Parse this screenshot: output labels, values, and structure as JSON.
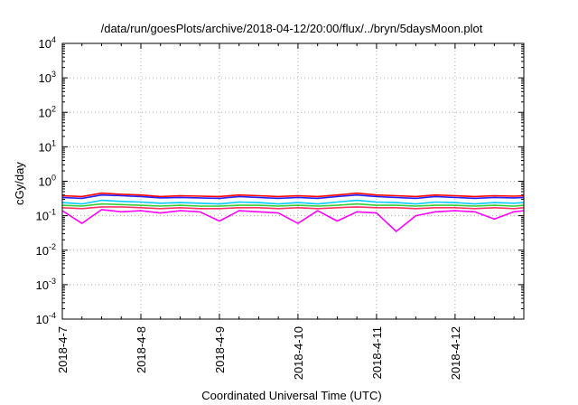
{
  "chart_data": {
    "type": "line",
    "title": "/data/run/goesPlots/archive/2018-04-12/20:00/flux/../bryn/5daysMoon.plot",
    "xlabel": "Coordinated Universal Time (UTC)",
    "ylabel": "cGy/day",
    "yscale": "log",
    "ylim": [
      0.0001,
      10000
    ],
    "xlim": [
      "2018-04-07",
      "2018-04-12T21:00"
    ],
    "grid": true,
    "x_ticks": [
      "2018-4-7",
      "2018-4-8",
      "2018-4-9",
      "2018-4-10",
      "2018-4-11",
      "2018-4-12"
    ],
    "y_ticks": [
      {
        "value": 0.0001,
        "base": "10",
        "exp": "-4"
      },
      {
        "value": 0.001,
        "base": "10",
        "exp": "-3"
      },
      {
        "value": 0.01,
        "base": "10",
        "exp": "-2"
      },
      {
        "value": 0.1,
        "base": "10",
        "exp": "-1"
      },
      {
        "value": 1,
        "base": "10",
        "exp": "0"
      },
      {
        "value": 10,
        "base": "10",
        "exp": "1"
      },
      {
        "value": 100,
        "base": "10",
        "exp": "2"
      },
      {
        "value": 1000,
        "base": "10",
        "exp": "3"
      },
      {
        "value": 10000,
        "base": "10",
        "exp": "4"
      }
    ],
    "x": [
      "2018-04-07",
      "2018-04-07T06:00",
      "2018-04-07T12:00",
      "2018-04-07T18:00",
      "2018-04-08",
      "2018-04-08T06:00",
      "2018-04-08T12:00",
      "2018-04-08T18:00",
      "2018-04-09",
      "2018-04-09T06:00",
      "2018-04-09T12:00",
      "2018-04-09T18:00",
      "2018-04-10",
      "2018-04-10T06:00",
      "2018-04-10T12:00",
      "2018-04-10T18:00",
      "2018-04-11",
      "2018-04-11T06:00",
      "2018-04-11T12:00",
      "2018-04-11T18:00",
      "2018-04-12",
      "2018-04-12T06:00",
      "2018-04-12T12:00",
      "2018-04-12T18:00",
      "2018-04-12T21:00"
    ],
    "series": [
      {
        "color": "#ff0000",
        "values": [
          0.38,
          0.36,
          0.45,
          0.42,
          0.4,
          0.36,
          0.38,
          0.37,
          0.36,
          0.4,
          0.38,
          0.36,
          0.38,
          0.36,
          0.4,
          0.45,
          0.4,
          0.38,
          0.36,
          0.4,
          0.38,
          0.36,
          0.38,
          0.37,
          0.38
        ]
      },
      {
        "color": "#2222ff",
        "values": [
          0.34,
          0.32,
          0.4,
          0.38,
          0.36,
          0.33,
          0.34,
          0.33,
          0.32,
          0.36,
          0.34,
          0.32,
          0.34,
          0.32,
          0.36,
          0.4,
          0.36,
          0.34,
          0.32,
          0.36,
          0.34,
          0.32,
          0.34,
          0.33,
          0.34
        ]
      },
      {
        "color": "#00ccff",
        "values": [
          0.24,
          0.22,
          0.28,
          0.26,
          0.25,
          0.23,
          0.24,
          0.23,
          0.22,
          0.25,
          0.24,
          0.22,
          0.24,
          0.22,
          0.25,
          0.28,
          0.25,
          0.24,
          0.22,
          0.25,
          0.24,
          0.22,
          0.24,
          0.23,
          0.24
        ]
      },
      {
        "color": "#33cc33",
        "values": [
          0.2,
          0.19,
          0.22,
          0.21,
          0.2,
          0.19,
          0.2,
          0.19,
          0.19,
          0.2,
          0.2,
          0.19,
          0.2,
          0.19,
          0.2,
          0.22,
          0.2,
          0.2,
          0.19,
          0.2,
          0.2,
          0.19,
          0.2,
          0.19,
          0.2
        ]
      },
      {
        "color": "#ff3366",
        "values": [
          0.17,
          0.16,
          0.18,
          0.18,
          0.17,
          0.16,
          0.17,
          0.16,
          0.16,
          0.17,
          0.17,
          0.16,
          0.17,
          0.16,
          0.17,
          0.18,
          0.17,
          0.17,
          0.16,
          0.17,
          0.17,
          0.16,
          0.17,
          0.16,
          0.17
        ]
      },
      {
        "color": "#ff00ff",
        "values": [
          0.14,
          0.06,
          0.15,
          0.13,
          0.14,
          0.12,
          0.14,
          0.13,
          0.07,
          0.14,
          0.13,
          0.12,
          0.06,
          0.14,
          0.07,
          0.13,
          0.12,
          0.035,
          0.1,
          0.13,
          0.14,
          0.13,
          0.08,
          0.13,
          0.14
        ]
      }
    ]
  }
}
